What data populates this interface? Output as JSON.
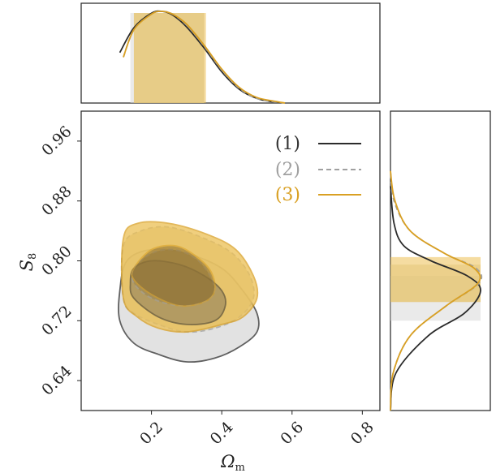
{
  "chart_data": {
    "type": "corner",
    "xlabel": "Ω",
    "xlabel_sub": "m",
    "ylabel": "S",
    "ylabel_sub": "8",
    "xlim": [
      0.0,
      0.85
    ],
    "ylim": [
      0.6,
      1.0
    ],
    "x_ticks": [
      0.2,
      0.4,
      0.6,
      0.8
    ],
    "x_tick_labels": [
      "0.2",
      "0.4",
      "0.6",
      "0.8"
    ],
    "y_ticks": [
      0.64,
      0.72,
      0.8,
      0.88,
      0.96
    ],
    "y_tick_labels": [
      "0.64",
      "0.72",
      "0.80",
      "0.88",
      "0.96"
    ],
    "legend_position": "upper-right",
    "series": [
      {
        "name": "(1)",
        "color": "#2b2b2b",
        "line_style": "solid",
        "fill": "#d9d9d9",
        "inner_fill": "#8a7a5a",
        "omega_m_marginal": {
          "x": [
            0.11,
            0.15,
            0.2,
            0.23,
            0.26,
            0.3,
            0.35,
            0.4,
            0.45,
            0.5,
            0.55
          ],
          "density": [
            0.55,
            0.82,
            0.98,
            1.0,
            0.96,
            0.83,
            0.6,
            0.34,
            0.15,
            0.05,
            0.01
          ]
        },
        "omega_m_band": [
          0.14,
          0.35
        ],
        "s8_marginal": {
          "y": [
            0.6,
            0.65,
            0.7,
            0.73,
            0.76,
            0.78,
            0.8,
            0.82,
            0.85,
            0.9
          ],
          "density": [
            0.0,
            0.06,
            0.42,
            0.82,
            1.0,
            0.85,
            0.45,
            0.15,
            0.04,
            0.0
          ]
        },
        "s8_band": [
          0.72,
          0.78
        ],
        "contour_95": [
          [
            0.11,
            0.72
          ],
          [
            0.15,
            0.69
          ],
          [
            0.22,
            0.675
          ],
          [
            0.3,
            0.665
          ],
          [
            0.38,
            0.67
          ],
          [
            0.45,
            0.685
          ],
          [
            0.5,
            0.705
          ],
          [
            0.5,
            0.73
          ],
          [
            0.46,
            0.76
          ],
          [
            0.4,
            0.79
          ],
          [
            0.3,
            0.81
          ],
          [
            0.2,
            0.815
          ],
          [
            0.13,
            0.8
          ],
          [
            0.11,
            0.76
          ]
        ],
        "contour_68": [
          [
            0.15,
            0.79
          ],
          [
            0.2,
            0.8
          ],
          [
            0.28,
            0.795
          ],
          [
            0.35,
            0.78
          ],
          [
            0.4,
            0.76
          ],
          [
            0.41,
            0.74
          ],
          [
            0.38,
            0.72
          ],
          [
            0.3,
            0.715
          ],
          [
            0.22,
            0.725
          ],
          [
            0.15,
            0.75
          ],
          [
            0.14,
            0.77
          ]
        ]
      },
      {
        "name": "(2)",
        "color": "#a0a0a0",
        "line_style": "dashed",
        "fill": "#d9cfa8",
        "inner_fill": "#9a8450",
        "omega_m_marginal": {
          "x": [
            0.12,
            0.15,
            0.2,
            0.23,
            0.26,
            0.3,
            0.35,
            0.4,
            0.45,
            0.5,
            0.55
          ],
          "density": [
            0.5,
            0.8,
            0.97,
            1.0,
            0.97,
            0.85,
            0.62,
            0.36,
            0.16,
            0.05,
            0.01
          ]
        },
        "omega_m_band": [
          0.15,
          0.35
        ],
        "s8_marginal": {
          "y": [
            0.6,
            0.65,
            0.7,
            0.74,
            0.77,
            0.79,
            0.81,
            0.84,
            0.88,
            0.92
          ],
          "density": [
            0.0,
            0.03,
            0.22,
            0.62,
            0.98,
            0.95,
            0.6,
            0.22,
            0.04,
            0.0
          ]
        },
        "s8_band": [
          0.745,
          0.795
        ],
        "contour_95": [
          [
            0.12,
            0.75
          ],
          [
            0.15,
            0.73
          ],
          [
            0.22,
            0.715
          ],
          [
            0.3,
            0.705
          ],
          [
            0.38,
            0.71
          ],
          [
            0.45,
            0.725
          ],
          [
            0.49,
            0.75
          ],
          [
            0.48,
            0.78
          ],
          [
            0.43,
            0.81
          ],
          [
            0.35,
            0.83
          ],
          [
            0.25,
            0.845
          ],
          [
            0.17,
            0.84
          ],
          [
            0.12,
            0.82
          ]
        ],
        "contour_68": [
          [
            0.15,
            0.79
          ],
          [
            0.2,
            0.81
          ],
          [
            0.26,
            0.815
          ],
          [
            0.32,
            0.805
          ],
          [
            0.36,
            0.785
          ],
          [
            0.38,
            0.76
          ],
          [
            0.35,
            0.745
          ],
          [
            0.28,
            0.74
          ],
          [
            0.2,
            0.75
          ],
          [
            0.15,
            0.77
          ]
        ]
      },
      {
        "name": "(3)",
        "color": "#d9a023",
        "line_style": "solid",
        "fill": "#ecc054",
        "inner_fill": "#8c6c2c",
        "omega_m_marginal": {
          "x": [
            0.12,
            0.15,
            0.2,
            0.23,
            0.26,
            0.3,
            0.35,
            0.4,
            0.45,
            0.5,
            0.55,
            0.58
          ],
          "density": [
            0.5,
            0.8,
            0.97,
            1.0,
            0.97,
            0.86,
            0.63,
            0.37,
            0.17,
            0.06,
            0.02,
            0.0
          ]
        },
        "omega_m_band": [
          0.15,
          0.355
        ],
        "s8_marginal": {
          "y": [
            0.6,
            0.65,
            0.7,
            0.74,
            0.77,
            0.79,
            0.81,
            0.84,
            0.88,
            0.92
          ],
          "density": [
            0.0,
            0.03,
            0.22,
            0.62,
            0.97,
            0.93,
            0.6,
            0.22,
            0.05,
            0.0
          ]
        },
        "s8_band": [
          0.745,
          0.805
        ],
        "contour_95": [
          [
            0.12,
            0.75
          ],
          [
            0.16,
            0.725
          ],
          [
            0.22,
            0.71
          ],
          [
            0.3,
            0.705
          ],
          [
            0.4,
            0.715
          ],
          [
            0.46,
            0.725
          ],
          [
            0.5,
            0.75
          ],
          [
            0.49,
            0.78
          ],
          [
            0.44,
            0.815
          ],
          [
            0.36,
            0.835
          ],
          [
            0.25,
            0.85
          ],
          [
            0.16,
            0.85
          ],
          [
            0.12,
            0.83
          ]
        ],
        "contour_68": [
          [
            0.15,
            0.79
          ],
          [
            0.2,
            0.815
          ],
          [
            0.27,
            0.82
          ],
          [
            0.33,
            0.805
          ],
          [
            0.37,
            0.785
          ],
          [
            0.38,
            0.76
          ],
          [
            0.35,
            0.745
          ],
          [
            0.28,
            0.74
          ],
          [
            0.2,
            0.755
          ],
          [
            0.15,
            0.775
          ]
        ]
      }
    ]
  }
}
